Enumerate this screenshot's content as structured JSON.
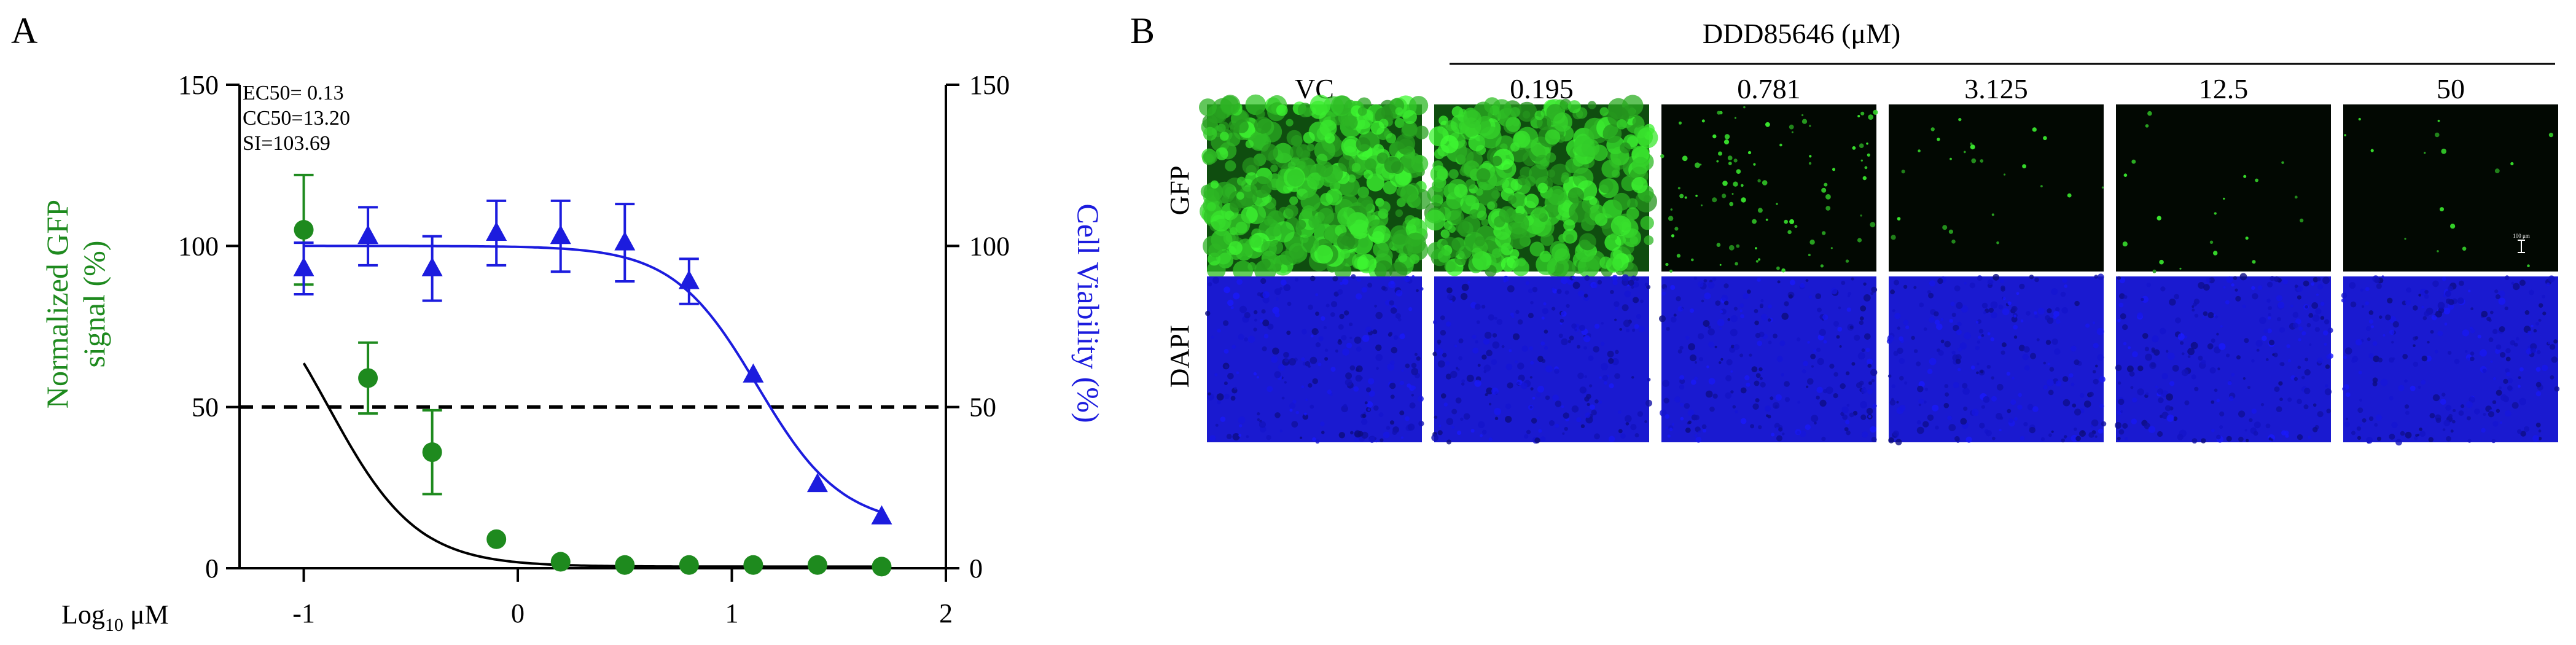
{
  "panel_a": {
    "letter": "A",
    "stats": [
      "EC50= 0.13",
      "CC50=13.20",
      "SI=103.69"
    ],
    "xlabel_main": "Log",
    "xlabel_sub": "10",
    "xlabel_unit": " μM",
    "ylabel_left_line1": "Normalized GFP",
    "ylabel_left_line2": "signal (%)",
    "ylabel_right": "Cell Viability (%)"
  },
  "panel_b": {
    "letter": "B",
    "compound_label": "DDD85646 (μM)",
    "column_labels": [
      "VC",
      "0.195",
      "0.781",
      "3.125",
      "12.5",
      "50"
    ],
    "row_labels": [
      "GFP",
      "DAPI"
    ],
    "gfp_intensity": [
      1.0,
      0.9,
      0.2,
      0.03,
      0.02,
      0.01
    ],
    "scale_bar_label": "100 μm"
  },
  "chart_data": {
    "type": "scatter",
    "title": "",
    "xlabel": "Log10 μM",
    "ylabel": "Normalized GFP signal (%)",
    "y2label": "Cell Viability (%)",
    "xlim": [
      -1.3,
      2.0
    ],
    "ylim": [
      0,
      150
    ],
    "y2lim": [
      0,
      150
    ],
    "xticks": [
      -1,
      0,
      1,
      2
    ],
    "yticks": [
      0,
      50,
      100,
      150
    ],
    "reference_line": 50,
    "colors": {
      "gfp": "#1e8a1e",
      "viability": "#1c1cde",
      "gfp_fit": "#000000",
      "viability_fit": "#1c1cde"
    },
    "series": [
      {
        "name": "Normalized GFP signal (%)",
        "marker": "circle",
        "axis": "left",
        "x": [
          -1.0,
          -0.7,
          -0.4,
          -0.1,
          0.2,
          0.5,
          0.8,
          1.1,
          1.4,
          1.7
        ],
        "y": [
          105,
          59,
          36,
          9,
          2,
          1,
          1,
          1,
          1,
          0.5
        ],
        "err": [
          17,
          11,
          13,
          0,
          0,
          0,
          0,
          0,
          0,
          0
        ],
        "fit": {
          "top": 100,
          "bottom": 0.5,
          "logEC50": -0.886,
          "hill": 2.1,
          "x_from": -1.0,
          "x_to": 1.7
        }
      },
      {
        "name": "Cell Viability (%)",
        "marker": "triangle",
        "axis": "right",
        "x": [
          -1.0,
          -0.7,
          -0.4,
          -0.1,
          0.2,
          0.5,
          0.8,
          1.1,
          1.4,
          1.7
        ],
        "y": [
          93,
          103,
          93,
          104,
          103,
          101,
          89,
          60,
          26,
          16
        ],
        "err": [
          8,
          9,
          10,
          10,
          11,
          12,
          7,
          0,
          0,
          0
        ],
        "fit": {
          "top": 100,
          "bottom": 13,
          "logEC50": 1.12,
          "hill": 2.2,
          "x_from": -1.0,
          "x_to": 1.7
        }
      }
    ]
  }
}
